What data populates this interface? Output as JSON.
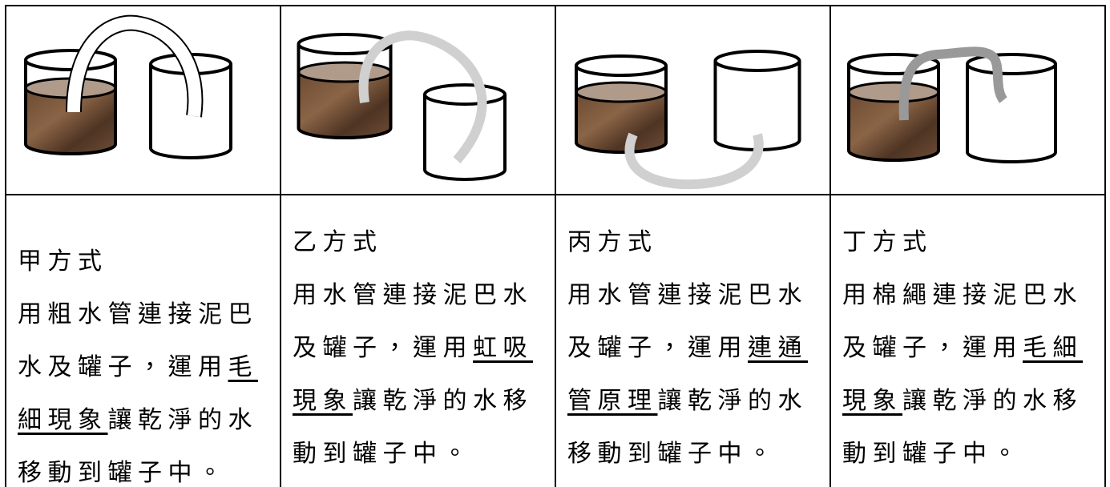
{
  "cells": [
    {
      "title": "甲方式",
      "text_before": "用粗水管連接泥巴水及罐子，運用",
      "term": "毛細現象",
      "text_after": "讓乾淨的水移動到罐子中。"
    },
    {
      "title": "乙方式",
      "text_before": "用水管連接泥巴水及罐子，運用",
      "term": "虹吸現象",
      "text_after": "讓乾淨的水移動到罐子中。"
    },
    {
      "title": "丙方式",
      "text_before": "用水管連接泥巴水及罐子，運用",
      "term": "連通管原理",
      "text_after": "讓乾淨的水移動到罐子中。"
    },
    {
      "title": "丁方式",
      "text_before": "用棉繩連接泥巴水及罐子，運用",
      "term": "毛細現象",
      "text_after": "讓乾淨的水移動到罐子中。"
    }
  ]
}
